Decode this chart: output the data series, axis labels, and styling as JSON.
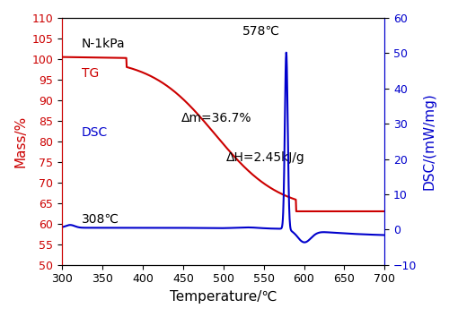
{
  "xlabel": "Temperature/℃",
  "ylabel_left": "Mass/%",
  "ylabel_right": "DSC/(mW/mg)",
  "xlim": [
    300,
    700
  ],
  "ylim_left": [
    50,
    110
  ],
  "ylim_right": [
    -10,
    60
  ],
  "tg_color": "#cc0000",
  "dsc_color": "#0000cc",
  "label_N1kPa": "N-1kPa",
  "label_TG": "TG",
  "label_DSC": "DSC",
  "label_578": "578℃",
  "label_308": "308℃",
  "label_delta_m": "Δm=36.7%",
  "label_delta_H": "ΔH=2.45kJ/g",
  "yticks_left": [
    50,
    55,
    60,
    65,
    70,
    75,
    80,
    85,
    90,
    95,
    100,
    105,
    110
  ],
  "yticks_right": [
    -10,
    0,
    10,
    20,
    30,
    40,
    50,
    60
  ],
  "xticks": [
    300,
    350,
    400,
    450,
    500,
    550,
    600,
    650,
    700
  ]
}
